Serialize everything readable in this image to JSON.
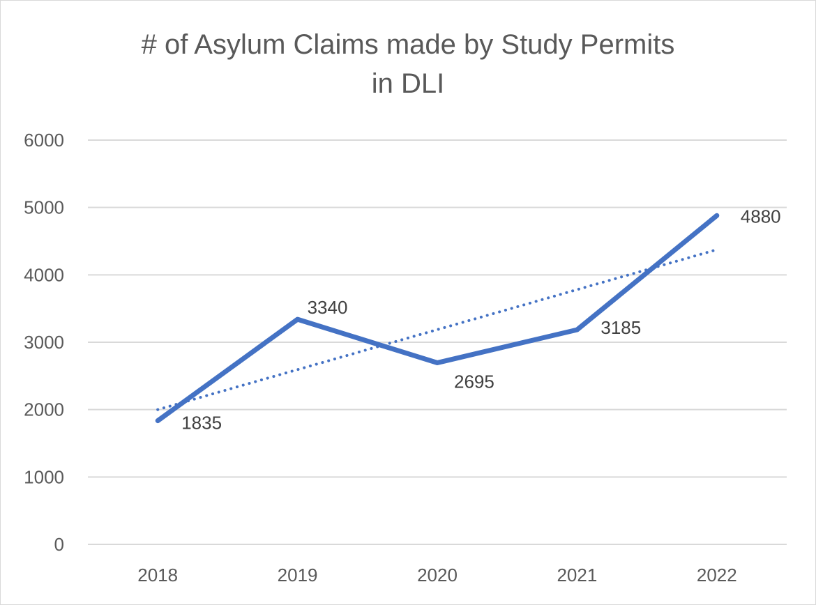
{
  "chart_data": {
    "type": "line",
    "title_lines": [
      "# of Asylum Claims made by Study Permits",
      "in DLI"
    ],
    "categories": [
      "2018",
      "2019",
      "2020",
      "2021",
      "2022"
    ],
    "series": [
      {
        "values": [
          1835,
          3340,
          2695,
          3185,
          4880
        ],
        "color": "#4472c4"
      }
    ],
    "data_labels": [
      "1835",
      "3340",
      "2695",
      "3185",
      "4880"
    ],
    "trendline": {
      "type": "linear",
      "style": "dotted",
      "color": "#4472c4"
    },
    "ylim": [
      0,
      6000
    ],
    "yticks": [
      0,
      1000,
      2000,
      3000,
      4000,
      5000,
      6000
    ],
    "ytick_labels": [
      "0",
      "1000",
      "2000",
      "3000",
      "4000",
      "5000",
      "6000"
    ],
    "grid": true,
    "legend": "none"
  }
}
